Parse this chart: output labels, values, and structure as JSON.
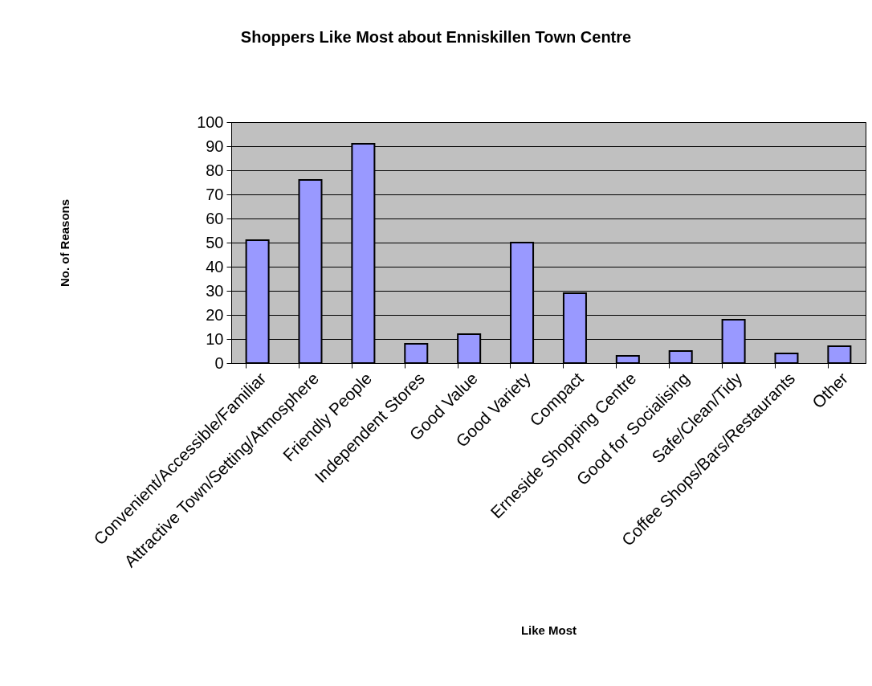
{
  "chart_data": {
    "type": "bar",
    "title": "Shoppers Like Most about Enniskillen Town Centre",
    "xlabel": "Like Most",
    "ylabel": "No. of Reasons",
    "categories": [
      "Convenient/Accessible/Familiar",
      "Attractive Town/Setting/Atmosphere",
      "Friendly People",
      "Independent Stores",
      "Good Value",
      "Good Variety",
      "Compact",
      "Erneside Shopping Centre",
      "Good for Socialising",
      "Safe/Clean/Tidy",
      "Coffee Shops/Bars/Restaurants",
      "Other"
    ],
    "values": [
      51,
      76,
      91,
      8,
      12,
      50,
      29,
      3,
      5,
      18,
      4,
      7
    ],
    "color": "#9999ff",
    "ylim": [
      0,
      100
    ],
    "yticks": [
      0,
      10,
      20,
      30,
      40,
      50,
      60,
      70,
      80,
      90,
      100
    ],
    "grid": "y",
    "legend": false
  }
}
